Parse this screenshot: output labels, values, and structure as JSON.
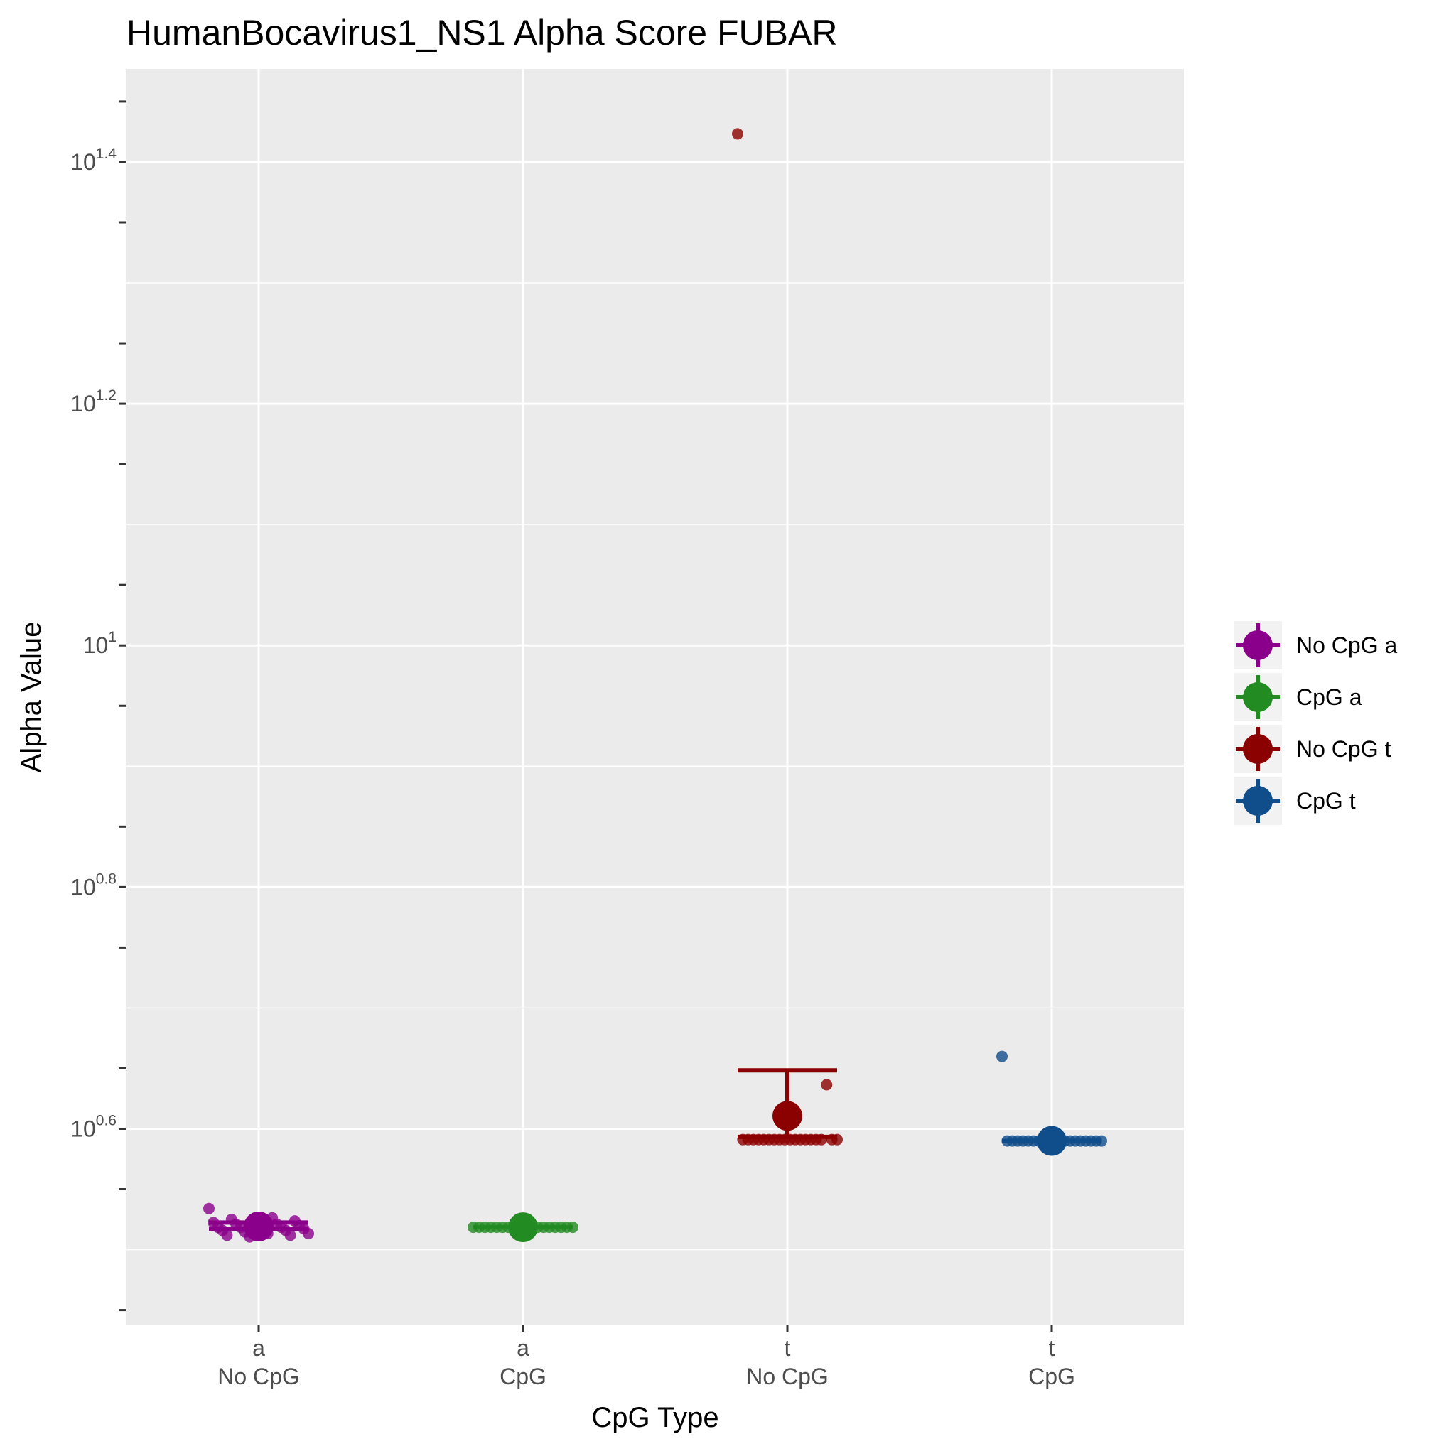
{
  "chart_data": {
    "type": "scatter",
    "title": "HumanBocavirus1_NS1 Alpha Score FUBAR",
    "xlabel": "CpG Type",
    "ylabel": "Alpha Value",
    "y_scale": "log10",
    "ylim_log10": [
      0.438,
      1.477
    ],
    "y_ticks": [
      {
        "log10": 0.6,
        "base": "10",
        "exp": "0.6"
      },
      {
        "log10": 0.8,
        "base": "10",
        "exp": "0.8"
      },
      {
        "log10": 1.0,
        "base": "10",
        "exp": "1"
      },
      {
        "log10": 1.2,
        "base": "10",
        "exp": "1.2"
      },
      {
        "log10": 1.4,
        "base": "10",
        "exp": "1.4"
      }
    ],
    "categories": [
      {
        "line1": "a",
        "line2": "No CpG"
      },
      {
        "line1": "a",
        "line2": "CpG"
      },
      {
        "line1": "t",
        "line2": "No CpG"
      },
      {
        "line1": "t",
        "line2": "CpG"
      }
    ],
    "legend_position": "right",
    "series": [
      {
        "name": "No CpG a",
        "color": "#8B008B",
        "mean": 3.305,
        "ci": [
          3.29,
          3.33
        ],
        "points": [
          3.42,
          3.36,
          3.35,
          3.34,
          3.33,
          3.33,
          3.32,
          3.32,
          3.31,
          3.31,
          3.3,
          3.3,
          3.3,
          3.29,
          3.29,
          3.28,
          3.28,
          3.27,
          3.26,
          3.26,
          3.25,
          3.25,
          3.24
        ]
      },
      {
        "name": "CpG a",
        "color": "#228B22",
        "mean": 3.3,
        "ci": [
          3.3,
          3.3
        ],
        "points": [
          3.3,
          3.3,
          3.3,
          3.3,
          3.3,
          3.3,
          3.3,
          3.3,
          3.3,
          3.3,
          3.3,
          3.3,
          3.3,
          3.3,
          3.3,
          3.3,
          3.3,
          3.3
        ]
      },
      {
        "name": "No CpG t",
        "color": "#8B0000",
        "mean": 4.08,
        "ci": [
          3.92,
          4.45
        ],
        "points": [
          26.5,
          4.33,
          3.9,
          3.9,
          3.9,
          3.9,
          3.9,
          3.9,
          3.9,
          3.9,
          3.9,
          3.9,
          3.9,
          3.9,
          3.9,
          3.9,
          3.9,
          3.9,
          3.9,
          3.9
        ]
      },
      {
        "name": "CpG t",
        "color": "#104E8B",
        "mean": 3.89,
        "ci": [
          3.89,
          3.89
        ],
        "points": [
          4.57,
          3.89,
          3.89,
          3.89,
          3.89,
          3.89,
          3.89,
          3.89,
          3.89,
          3.89,
          3.89,
          3.89,
          3.89,
          3.89,
          3.89,
          3.89,
          3.89,
          3.89,
          3.89,
          3.89
        ]
      }
    ]
  }
}
